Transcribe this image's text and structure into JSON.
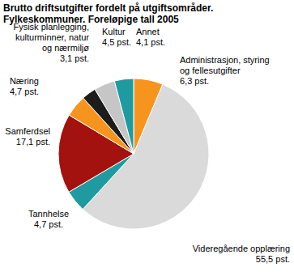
{
  "chart_data": {
    "type": "pie",
    "title": "Brutto driftsutgifter fordelt på utgiftsområder. Fylkeskommuner. Foreløpige tall 2005",
    "categories": [
      "Administrasjon, styring og fellesutgifter",
      "Videregående opplæring",
      "Tannhelse",
      "Samferdsel",
      "Næring",
      "Fysisk planlegging, kulturminner, natur og nærmiljø",
      "Kultur",
      "Annet"
    ],
    "values": [
      6.3,
      55.5,
      4.7,
      17.1,
      4.7,
      3.1,
      4.5,
      4.1
    ],
    "value_labels": [
      "6,3 pst.",
      "55,5 pst.",
      "4,7 pst.",
      "17,1 pst.",
      "4,7 pst.",
      "3,1 pst.",
      "4,5 pst.",
      "4,1 pst."
    ],
    "colors": [
      "#f7941d",
      "#dadada",
      "#1f9ba0",
      "#a3120f",
      "#f7941d",
      "#1c1c1c",
      "#c6c6c6",
      "#1f9ba0"
    ],
    "data_labels": true
  }
}
